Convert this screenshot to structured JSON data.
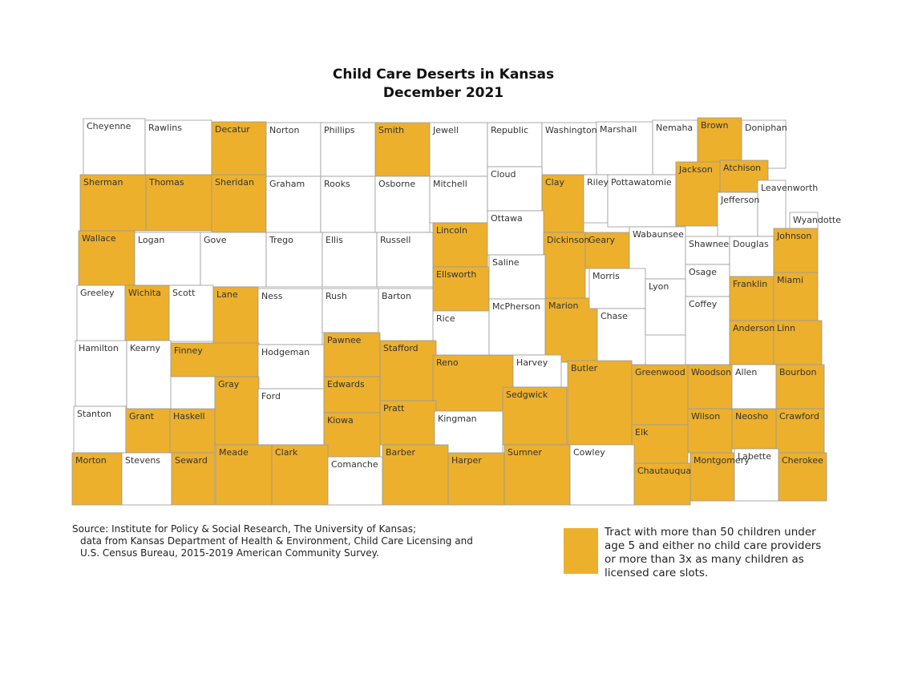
{
  "title": "Child Care Deserts in Kansas",
  "subtitle": "December 2021",
  "counties": [
    "Cheyenne",
    "Rawlins",
    "Decatur",
    "Norton",
    "Phillips",
    "Smith",
    "Jewell",
    "Republic",
    "Washington",
    "Marshall",
    "Nemaha",
    "Brown",
    "Doniphan",
    "Sherman",
    "Thomas",
    "Sheridan",
    "Graham",
    "Rooks",
    "Osborne",
    "Mitchell",
    "Cloud",
    "Clay",
    "Riley",
    "Pottawatomie",
    "Jackson",
    "Atchison",
    "Jefferson",
    "Leavenworth",
    "Wyandotte",
    "Wallace",
    "Logan",
    "Gove",
    "Trego",
    "Ellis",
    "Russell",
    "Lincoln",
    "Ottawa",
    "Dickinson",
    "Geary",
    "Wabaunsee",
    "Shawnee",
    "Osage",
    "Douglas",
    "Johnson",
    "Greeley",
    "Wichita",
    "Scott",
    "Lane",
    "Ness",
    "Rush",
    "Barton",
    "Ellsworth",
    "Saline",
    "Rice",
    "McPherson",
    "Marion",
    "Morris",
    "Chase",
    "Lyon",
    "Coffey",
    "Franklin",
    "Miami",
    "Anderson",
    "Linn",
    "Hamilton",
    "Kearny",
    "Finney",
    "Hodgeman",
    "Pawnee",
    "Stafford",
    "Reno",
    "Harvey",
    "Butler",
    "Greenwood",
    "Woodson",
    "Allen",
    "Bourbon",
    "Gray",
    "Ford",
    "Edwards",
    "Kiowa",
    "Pratt",
    "Kingman",
    "Sedgwick",
    "Stanton",
    "Grant",
    "Haskell",
    "Wilson",
    "Neosho",
    "Crawford",
    "Elk",
    "Morton",
    "Stevens",
    "Seward",
    "Meade",
    "Clark",
    "Comanche",
    "Barber",
    "Harper",
    "Sumner",
    "Cowley",
    "Chautauqua",
    "Montgomery",
    "Labette",
    "Cherokee"
  ],
  "legend": {
    "color": "#ecb02d",
    "lines": [
      "Tract with more than 50 children under",
      "age 5 and either no child care providers",
      "or more than 3x as many children as",
      "licensed care slots."
    ]
  },
  "source": [
    "Source: Institute for Policy & Social Research, The University of Kansas;",
    "data from Kansas Department of Health & Environment, Child Care Licensing and",
    "U.S. Census Bureau, 2015-2019 American Community Survey."
  ]
}
